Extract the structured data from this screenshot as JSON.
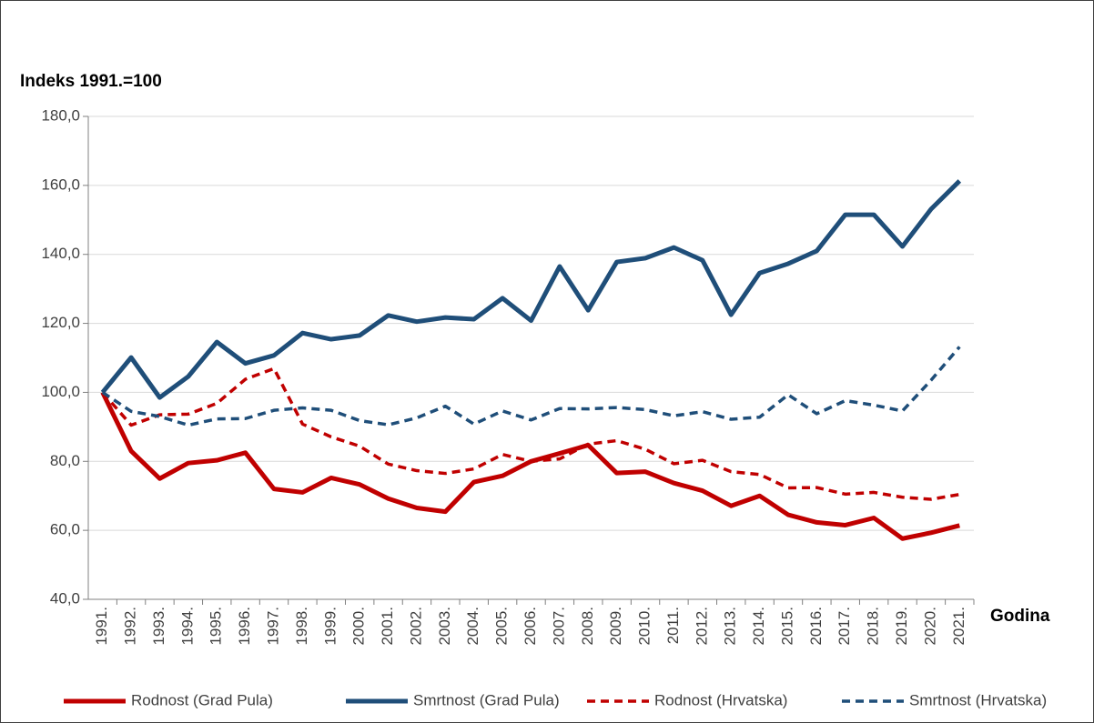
{
  "chart_data": {
    "type": "line",
    "y_label": "Indeks 1991.=100",
    "x_label": "Godina",
    "categories": [
      "1991.",
      "1992.",
      "1993.",
      "1994.",
      "1995.",
      "1996.",
      "1997.",
      "1998.",
      "1999.",
      "2000.",
      "2001.",
      "2002.",
      "2003.",
      "2004.",
      "2005.",
      "2006.",
      "2007.",
      "2008.",
      "2009.",
      "2010.",
      "2011.",
      "2012.",
      "2013.",
      "2014.",
      "2015.",
      "2016.",
      "2017.",
      "2018.",
      "2019.",
      "2020.",
      "2021."
    ],
    "series": [
      {
        "name": "Rodnost (Grad Pula)",
        "color": "#c00000",
        "dash": "solid",
        "values": [
          100,
          83,
          75,
          79.5,
          80.3,
          82.5,
          72,
          71,
          75.2,
          73.3,
          69.2,
          66.5,
          65.4,
          74,
          75.8,
          80,
          82.3,
          84.7,
          76.6,
          77,
          73.7,
          71.5,
          67.1,
          70,
          64.5,
          62.3,
          61.5,
          63.6,
          57.6,
          59.3,
          61.4
        ]
      },
      {
        "name": "Smrtnost (Grad Pula)",
        "color": "#1f4e79",
        "dash": "solid",
        "values": [
          100,
          110.1,
          98.5,
          104.6,
          114.6,
          108.4,
          110.7,
          117.2,
          115.4,
          116.5,
          122.3,
          120.5,
          121.7,
          121.2,
          127.3,
          120.8,
          136.5,
          123.8,
          137.8,
          138.9,
          142,
          138.3,
          122.5,
          134.6,
          137.3,
          141,
          151.5,
          151.5,
          142.3,
          153.1,
          161.3
        ]
      },
      {
        "name": "Rodnost (Hrvatska)",
        "color": "#c00000",
        "dash": "dashed",
        "values": [
          100,
          90.5,
          93.5,
          93.7,
          96.8,
          103.8,
          106.9,
          90.8,
          87.1,
          84.4,
          79.2,
          77.3,
          76.5,
          77.8,
          82,
          80,
          80.7,
          85,
          86,
          83.5,
          79.3,
          80.3,
          77,
          76.2,
          72.3,
          72.4,
          70.5,
          71,
          69.6,
          69,
          70.4
        ]
      },
      {
        "name": "Smrtnost (Hrvatska)",
        "color": "#1f4e79",
        "dash": "dashed",
        "values": [
          100,
          94.5,
          93,
          90.5,
          92.3,
          92.4,
          94.8,
          95.5,
          94.8,
          91.8,
          90.6,
          92.6,
          96,
          90.8,
          94.6,
          92,
          95.3,
          95.2,
          95.6,
          95,
          93.2,
          94.4,
          92.2,
          92.8,
          99.3,
          93.8,
          97.6,
          96.3,
          94.6,
          103.5,
          113.2
        ]
      }
    ],
    "ylim": [
      40,
      180
    ],
    "yticks": [
      {
        "value": 40,
        "label": "40,0"
      },
      {
        "value": 60,
        "label": "60,0"
      },
      {
        "value": 80,
        "label": "80,0"
      },
      {
        "value": 100,
        "label": "100,0"
      },
      {
        "value": 120,
        "label": "120,0"
      },
      {
        "value": 140,
        "label": "140,0"
      },
      {
        "value": 160,
        "label": "160,0"
      },
      {
        "value": 180,
        "label": "180,0"
      }
    ],
    "grid": true,
    "legend": "bottom"
  }
}
